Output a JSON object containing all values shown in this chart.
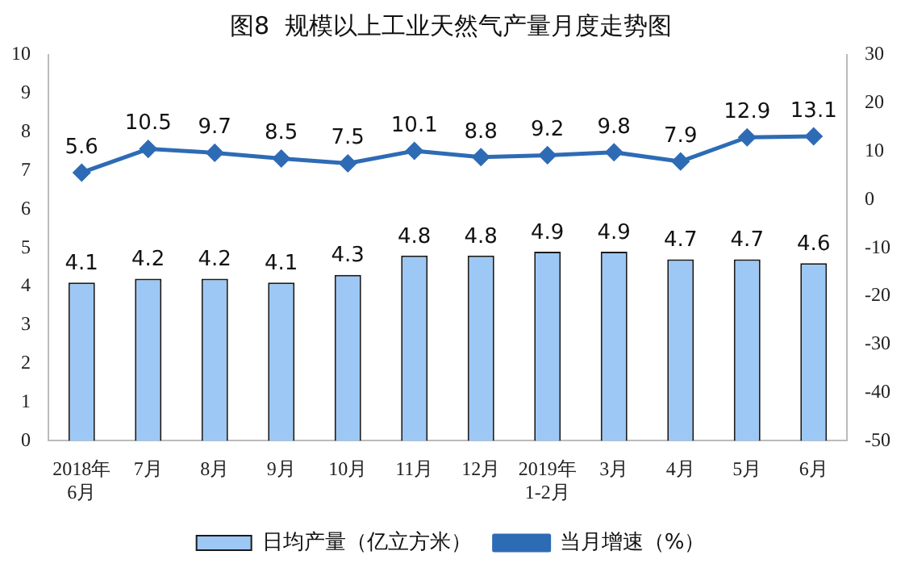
{
  "chart_data": {
    "type": "bar",
    "title": "图8  规模以上工业天然气产量月度走势图",
    "categories": [
      "2018年\n6月",
      "7月",
      "8月",
      "9月",
      "10月",
      "11月",
      "12月",
      "2019年\n1-2月",
      "3月",
      "4月",
      "5月",
      "6月"
    ],
    "series": [
      {
        "name": "日均产量（亿立方米）",
        "color": "#9dc8f5",
        "values": [
          4.1,
          4.2,
          4.2,
          4.1,
          4.3,
          4.8,
          4.8,
          4.9,
          4.9,
          4.7,
          4.7,
          4.6
        ]
      },
      {
        "name": "当月增速（%）",
        "type": "line",
        "axis": "y2",
        "color": "#2e6bb5",
        "marker": "diamond",
        "values": [
          5.6,
          10.5,
          9.7,
          8.5,
          7.5,
          10.1,
          8.8,
          9.2,
          9.8,
          7.9,
          12.9,
          13.1
        ]
      }
    ],
    "ylim": [
      0,
      10
    ],
    "yticks": [
      0,
      1,
      2,
      3,
      4,
      5,
      6,
      7,
      8,
      9,
      10
    ],
    "y2lim": [
      -50,
      30
    ],
    "y2ticks": [
      -50,
      -40,
      -30,
      -20,
      -10,
      0,
      10,
      20,
      30
    ],
    "data_labels": true,
    "grid": false,
    "legend": "bottom"
  }
}
